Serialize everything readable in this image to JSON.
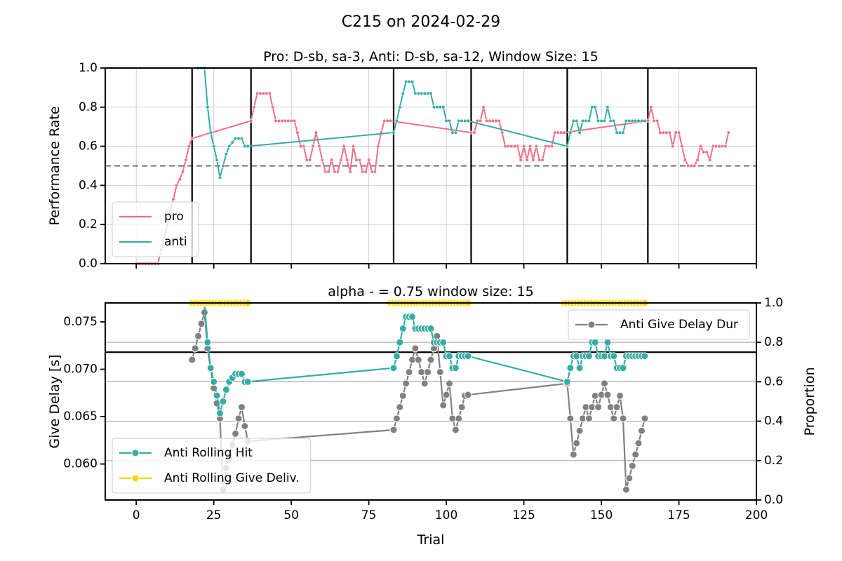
{
  "title": "C215 on 2024-02-29",
  "chart_data": [
    {
      "type": "line",
      "title": "Pro: D-sb, sa-3, Anti: D-sb, sa-12, Window Size: 15",
      "ylabel": "Performance Rate",
      "xlim": [
        -10,
        200
      ],
      "xticks": [
        0,
        25,
        50,
        75,
        100,
        125,
        150,
        175,
        200
      ],
      "xticklabels": false,
      "ylim": [
        0,
        1
      ],
      "yticks": [
        {
          "value": 0,
          "label": "0.0"
        },
        {
          "value": 0.2,
          "label": "0.2"
        },
        {
          "value": 0.4,
          "label": "0.4"
        },
        {
          "value": 0.6,
          "label": "0.6"
        },
        {
          "value": 0.8,
          "label": "0.8"
        },
        {
          "value": 1,
          "label": "1.0"
        }
      ],
      "grid": [
        "x",
        "y"
      ],
      "legend": "lower left",
      "hlines": [
        {
          "value": 0.5,
          "axis": "y",
          "color": "#808080",
          "dashed": true
        }
      ],
      "vlines": {
        "values": [
          18,
          37,
          83,
          108,
          139,
          165
        ],
        "color": "#000000"
      },
      "series": [
        {
          "name": "pro",
          "color": "#ef7087",
          "x": [
            0,
            1,
            2,
            3,
            4,
            5,
            6,
            7,
            8,
            9,
            10,
            11,
            12,
            13,
            14,
            15,
            16,
            17,
            18,
            37,
            38,
            39,
            40,
            41,
            42,
            43,
            44,
            45,
            46,
            47,
            48,
            49,
            50,
            51,
            52,
            53,
            54,
            55,
            56,
            57,
            58,
            59,
            60,
            61,
            62,
            63,
            64,
            65,
            66,
            67,
            68,
            69,
            70,
            71,
            72,
            73,
            74,
            75,
            76,
            77,
            78,
            79,
            80,
            81,
            82,
            108,
            109,
            110,
            111,
            112,
            113,
            114,
            115,
            116,
            117,
            118,
            119,
            120,
            121,
            122,
            123,
            124,
            125,
            126,
            127,
            128,
            129,
            130,
            131,
            132,
            133,
            134,
            135,
            136,
            137,
            138,
            165,
            166,
            167,
            168,
            169,
            170,
            171,
            172,
            173,
            174,
            175,
            176,
            177,
            178,
            179,
            180,
            181,
            182,
            183,
            184,
            185,
            186,
            187,
            188,
            189,
            190,
            191
          ],
          "values": [
            0,
            0,
            0,
            0,
            0,
            0,
            0,
            0,
            0.07,
            0.13,
            0.2,
            0.27,
            0.33,
            0.4,
            0.43,
            0.47,
            0.53,
            0.6,
            0.64,
            0.73,
            0.8,
            0.87,
            0.87,
            0.87,
            0.87,
            0.87,
            0.8,
            0.73,
            0.73,
            0.73,
            0.73,
            0.73,
            0.73,
            0.73,
            0.67,
            0.6,
            0.6,
            0.53,
            0.53,
            0.6,
            0.67,
            0.6,
            0.53,
            0.47,
            0.47,
            0.53,
            0.47,
            0.47,
            0.53,
            0.6,
            0.53,
            0.47,
            0.6,
            0.53,
            0.53,
            0.47,
            0.47,
            0.53,
            0.47,
            0.47,
            0.6,
            0.67,
            0.73,
            0.73,
            0.73,
            0.67,
            0.67,
            0.73,
            0.73,
            0.8,
            0.73,
            0.73,
            0.73,
            0.73,
            0.73,
            0.67,
            0.6,
            0.6,
            0.6,
            0.6,
            0.6,
            0.53,
            0.6,
            0.53,
            0.6,
            0.53,
            0.6,
            0.53,
            0.53,
            0.6,
            0.6,
            0.6,
            0.67,
            0.67,
            0.67,
            0.67,
            0.73,
            0.8,
            0.73,
            0.73,
            0.67,
            0.67,
            0.67,
            0.67,
            0.6,
            0.67,
            0.67,
            0.6,
            0.53,
            0.5,
            0.5,
            0.5,
            0.53,
            0.6,
            0.57,
            0.57,
            0.53,
            0.6,
            0.6,
            0.6,
            0.6,
            0.6,
            0.67
          ]
        },
        {
          "name": "anti",
          "color": "#36ada4",
          "x": [
            20,
            21,
            22,
            23,
            24,
            25,
            26,
            27,
            28,
            29,
            30,
            31,
            32,
            33,
            34,
            35,
            36,
            83,
            84,
            85,
            86,
            87,
            88,
            89,
            90,
            91,
            92,
            93,
            94,
            95,
            96,
            97,
            98,
            99,
            100,
            101,
            102,
            103,
            104,
            105,
            106,
            107,
            139,
            140,
            141,
            142,
            143,
            144,
            145,
            146,
            147,
            148,
            149,
            150,
            151,
            152,
            153,
            154,
            155,
            156,
            157,
            158,
            159,
            160,
            161,
            162,
            163,
            164
          ],
          "values": [
            1,
            1,
            1,
            0.8,
            0.67,
            0.6,
            0.53,
            0.44,
            0.5,
            0.56,
            0.6,
            0.62,
            0.64,
            0.64,
            0.64,
            0.6,
            0.6,
            0.67,
            0.73,
            0.8,
            0.87,
            0.93,
            0.93,
            0.93,
            0.87,
            0.87,
            0.87,
            0.87,
            0.87,
            0.87,
            0.8,
            0.8,
            0.8,
            0.8,
            0.73,
            0.73,
            0.67,
            0.67,
            0.73,
            0.73,
            0.73,
            0.73,
            0.6,
            0.67,
            0.73,
            0.73,
            0.67,
            0.73,
            0.73,
            0.73,
            0.8,
            0.8,
            0.73,
            0.73,
            0.73,
            0.8,
            0.73,
            0.73,
            0.67,
            0.67,
            0.67,
            0.73,
            0.73,
            0.73,
            0.73,
            0.73,
            0.73,
            0.73
          ]
        }
      ]
    },
    {
      "type": "line",
      "title": "alpha - = 0.75 window size: 15",
      "xlabel": "Trial",
      "ylabel": "Give Delay [s]",
      "y2label": "Proportion",
      "xlim": [
        -10,
        200
      ],
      "xticks": [
        0,
        25,
        50,
        75,
        100,
        125,
        150,
        175,
        200
      ],
      "ylim": [
        0.0562,
        0.077
      ],
      "yticks": [
        {
          "value": 0.06,
          "label": "0.060"
        },
        0.065,
        {
          "value": 0.07,
          "label": "0.070"
        },
        0.075
      ],
      "y2lim": [
        0,
        1
      ],
      "y2ticks": [
        {
          "value": 0,
          "label": "0.0"
        },
        {
          "value": 0.2,
          "label": "0.2"
        },
        {
          "value": 0.4,
          "label": "0.4"
        },
        {
          "value": 0.6,
          "label": "0.6"
        },
        {
          "value": 0.8,
          "label": "0.8"
        },
        {
          "value": 1,
          "label": "1.0"
        }
      ],
      "grid": [
        "y2"
      ],
      "hlines": [
        {
          "value": 0.75,
          "axis": "y2",
          "color": "#000000",
          "dashed": false
        }
      ],
      "series": [
        {
          "name": "Anti Give Delay Dur",
          "color": "#808080",
          "legend": "upper right",
          "x": [
            18,
            19,
            20,
            21,
            22,
            23,
            24,
            25,
            26,
            27,
            28,
            29,
            30,
            31,
            32,
            33,
            34,
            35,
            36,
            83,
            84,
            85,
            86,
            87,
            88,
            89,
            90,
            91,
            92,
            93,
            94,
            95,
            96,
            97,
            98,
            99,
            100,
            101,
            102,
            103,
            104,
            105,
            106,
            107,
            139,
            140,
            141,
            142,
            143,
            144,
            145,
            146,
            147,
            148,
            149,
            150,
            151,
            152,
            153,
            154,
            155,
            156,
            157,
            158,
            159,
            160,
            161,
            162,
            163,
            164
          ],
          "values": [
            0.071,
            0.0722,
            0.0735,
            0.0748,
            0.076,
            0.0722,
            0.07,
            0.068,
            0.0664,
            0.0648,
            0.0573,
            0.0596,
            0.0608,
            0.062,
            0.0632,
            0.0648,
            0.066,
            0.064,
            0.0624,
            0.0636,
            0.0648,
            0.066,
            0.0672,
            0.0685,
            0.0697,
            0.071,
            0.0722,
            0.071,
            0.0697,
            0.0685,
            0.0697,
            0.071,
            0.0722,
            0.0735,
            0.0697,
            0.0662,
            0.0673,
            0.0685,
            0.0648,
            0.0636,
            0.0648,
            0.066,
            0.0672,
            0.0673,
            0.0685,
            0.0648,
            0.061,
            0.0622,
            0.0635,
            0.0648,
            0.066,
            0.0648,
            0.066,
            0.0672,
            0.066,
            0.0673,
            0.0685,
            0.0673,
            0.066,
            0.0648,
            0.066,
            0.0672,
            0.0648,
            0.0573,
            0.0585,
            0.0598,
            0.061,
            0.0622,
            0.0635,
            0.0648
          ]
        },
        {
          "name": "Anti Rolling Hit",
          "color": "#36ada4",
          "axis": "y2",
          "legend": "lower left",
          "x": [
            20,
            21,
            22,
            23,
            24,
            25,
            26,
            27,
            28,
            29,
            30,
            31,
            32,
            33,
            34,
            35,
            36,
            83,
            84,
            85,
            86,
            87,
            88,
            89,
            90,
            91,
            92,
            93,
            94,
            95,
            96,
            97,
            98,
            99,
            100,
            101,
            102,
            103,
            104,
            105,
            106,
            107,
            139,
            140,
            141,
            142,
            143,
            144,
            145,
            146,
            147,
            148,
            149,
            150,
            151,
            152,
            153,
            154,
            155,
            156,
            157,
            158,
            159,
            160,
            161,
            162,
            163,
            164
          ],
          "values": [
            1,
            1,
            1,
            0.8,
            0.67,
            0.6,
            0.53,
            0.44,
            0.5,
            0.56,
            0.6,
            0.62,
            0.64,
            0.64,
            0.64,
            0.6,
            0.6,
            0.67,
            0.73,
            0.8,
            0.87,
            0.93,
            0.93,
            0.93,
            0.87,
            0.87,
            0.87,
            0.87,
            0.87,
            0.87,
            0.8,
            0.8,
            0.8,
            0.8,
            0.73,
            0.73,
            0.67,
            0.67,
            0.73,
            0.73,
            0.73,
            0.73,
            0.6,
            0.67,
            0.73,
            0.73,
            0.67,
            0.73,
            0.73,
            0.73,
            0.8,
            0.8,
            0.73,
            0.73,
            0.73,
            0.8,
            0.73,
            0.73,
            0.67,
            0.67,
            0.67,
            0.73,
            0.73,
            0.73,
            0.73,
            0.73,
            0.73,
            0.73
          ]
        },
        {
          "name": "Anti Rolling Give Deliv.",
          "color": "#ffd700",
          "axis": "y2",
          "legend": "lower left",
          "x": [
            18,
            19,
            20,
            21,
            22,
            23,
            24,
            25,
            26,
            27,
            28,
            29,
            30,
            31,
            32,
            33,
            34,
            35,
            36,
            null,
            82,
            83,
            84,
            85,
            86,
            87,
            88,
            89,
            90,
            91,
            92,
            93,
            94,
            95,
            96,
            97,
            98,
            99,
            100,
            101,
            102,
            103,
            104,
            105,
            106,
            107,
            null,
            138,
            139,
            140,
            141,
            142,
            143,
            144,
            145,
            146,
            147,
            148,
            149,
            150,
            151,
            152,
            153,
            154,
            155,
            156,
            157,
            158,
            159,
            160,
            161,
            162,
            163,
            164
          ],
          "values": [
            1,
            1,
            1,
            1,
            1,
            1,
            1,
            1,
            1,
            1,
            1,
            1,
            1,
            1,
            1,
            1,
            1,
            1,
            1,
            null,
            1,
            1,
            1,
            1,
            1,
            1,
            1,
            1,
            1,
            1,
            1,
            1,
            1,
            1,
            1,
            1,
            1,
            1,
            1,
            1,
            1,
            1,
            1,
            1,
            1,
            1,
            null,
            1,
            1,
            1,
            1,
            1,
            1,
            1,
            1,
            1,
            1,
            1,
            1,
            1,
            1,
            1,
            1,
            1,
            1,
            1,
            1,
            1,
            1,
            1,
            1,
            1,
            1,
            1
          ]
        }
      ]
    }
  ]
}
